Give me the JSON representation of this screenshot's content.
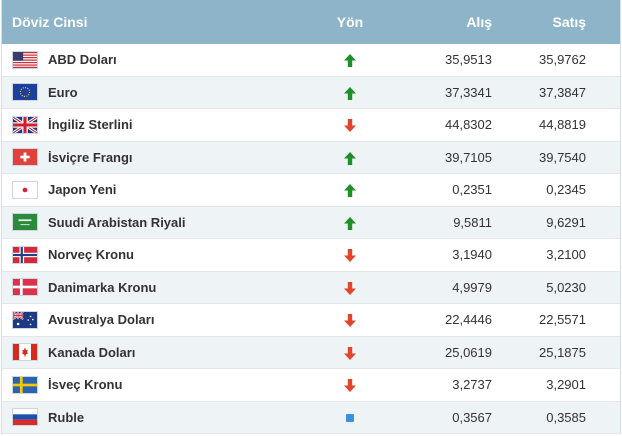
{
  "header": {
    "name": "Döviz Cinsi",
    "direction": "Yön",
    "buy": "Alış",
    "sell": "Satış"
  },
  "colors": {
    "up": "#1f8f2a",
    "down": "#e0462d",
    "flat": "#3d8fe0",
    "header_bg": "#8eb4ca"
  },
  "rows": [
    {
      "flag": "us-flag-icon",
      "name": "ABD Doları",
      "dir": "up",
      "buy": "35,9513",
      "sell": "35,9762"
    },
    {
      "flag": "eu-flag-icon",
      "name": "Euro",
      "dir": "up",
      "buy": "37,3341",
      "sell": "37,3847"
    },
    {
      "flag": "gb-flag-icon",
      "name": "İngiliz Sterlini",
      "dir": "down",
      "buy": "44,8302",
      "sell": "44,8819"
    },
    {
      "flag": "ch-flag-icon",
      "name": "İsviçre Frangı",
      "dir": "up",
      "buy": "39,7105",
      "sell": "39,7540"
    },
    {
      "flag": "jp-flag-icon",
      "name": "Japon Yeni",
      "dir": "up",
      "buy": "0,2351",
      "sell": "0,2345"
    },
    {
      "flag": "sa-flag-icon",
      "name": "Suudi Arabistan Riyali",
      "dir": "up",
      "buy": "9,5811",
      "sell": "9,6291"
    },
    {
      "flag": "no-flag-icon",
      "name": "Norveç Kronu",
      "dir": "down",
      "buy": "3,1940",
      "sell": "3,2100"
    },
    {
      "flag": "dk-flag-icon",
      "name": "Danimarka Kronu",
      "dir": "down",
      "buy": "4,9979",
      "sell": "5,0230"
    },
    {
      "flag": "au-flag-icon",
      "name": "Avustralya Doları",
      "dir": "down",
      "buy": "22,4446",
      "sell": "22,5571"
    },
    {
      "flag": "ca-flag-icon",
      "name": "Kanada Doları",
      "dir": "down",
      "buy": "25,0619",
      "sell": "25,1875"
    },
    {
      "flag": "se-flag-icon",
      "name": "İsveç Kronu",
      "dir": "down",
      "buy": "3,2737",
      "sell": "3,2901"
    },
    {
      "flag": "ru-flag-icon",
      "name": "Ruble",
      "dir": "flat",
      "buy": "0,3567",
      "sell": "0,3585"
    }
  ]
}
